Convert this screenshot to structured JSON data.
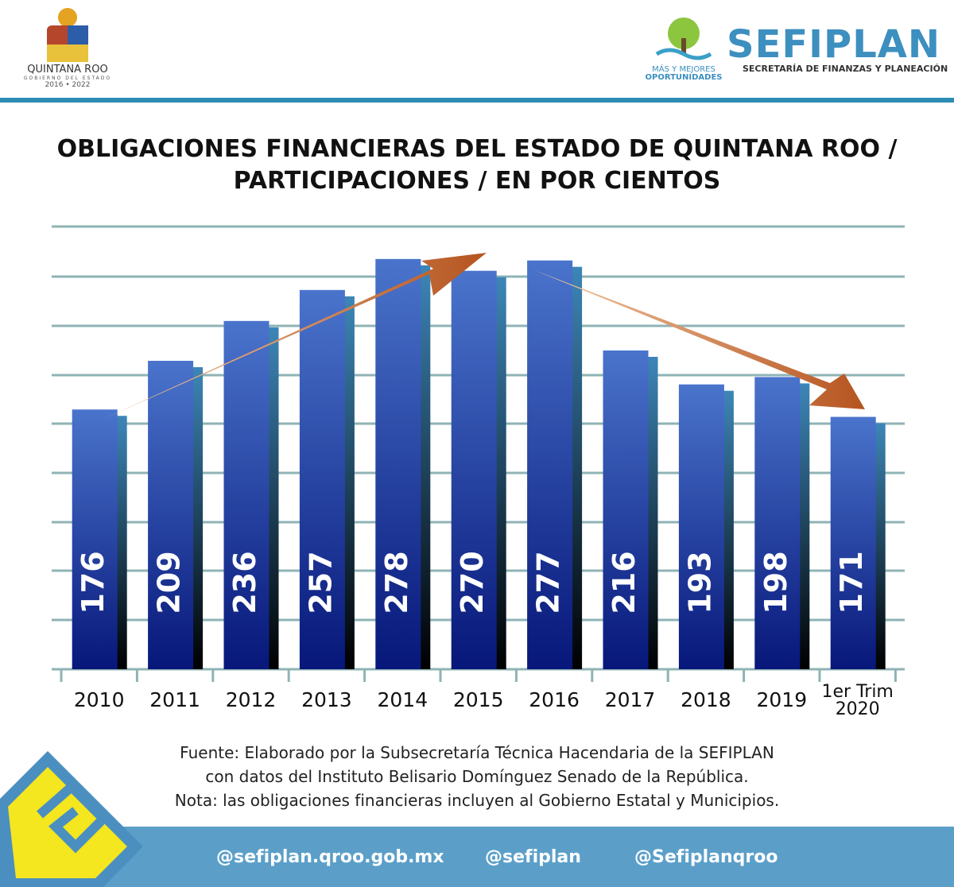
{
  "header": {
    "state": {
      "name": "QUINTANA ROO",
      "subtitle": "GOBIERNO DEL ESTADO",
      "years": "2016 • 2022"
    },
    "slogan": [
      "MÁS Y MEJORES",
      "OPORTUNIDADES"
    ],
    "org": {
      "name": "SEFIPLAN",
      "full": "SECRETARÍA DE FINANZAS Y PLANEACIÓN"
    }
  },
  "chart_data": {
    "type": "bar",
    "title": "OBLIGACIONES FINANCIERAS DEL ESTADO DE QUINTANA ROO / PARTICIPACIONES / EN POR CIENTOS",
    "categories": [
      "2010",
      "2011",
      "2012",
      "2013",
      "2014",
      "2015",
      "2016",
      "2017",
      "2018",
      "2019",
      "1er Trim 2020"
    ],
    "values": [
      176,
      209,
      236,
      257,
      278,
      270,
      277,
      216,
      193,
      198,
      171
    ],
    "color": "#3f66c4",
    "ylim": [
      0,
      300
    ]
  },
  "notes": [
    "Fuente: Elaborado por la Subsecretaría Técnica Hacendaria de la SEFIPLAN",
    "con datos del Instituto Belisario Domínguez Senado de la República.",
    "Nota: las obligaciones financieras incluyen al Gobierno Estatal y Municipios."
  ],
  "footer": {
    "links": [
      "@sefiplan.qroo.gob.mx",
      "@sefiplan",
      "@Sefiplanqroo"
    ]
  }
}
